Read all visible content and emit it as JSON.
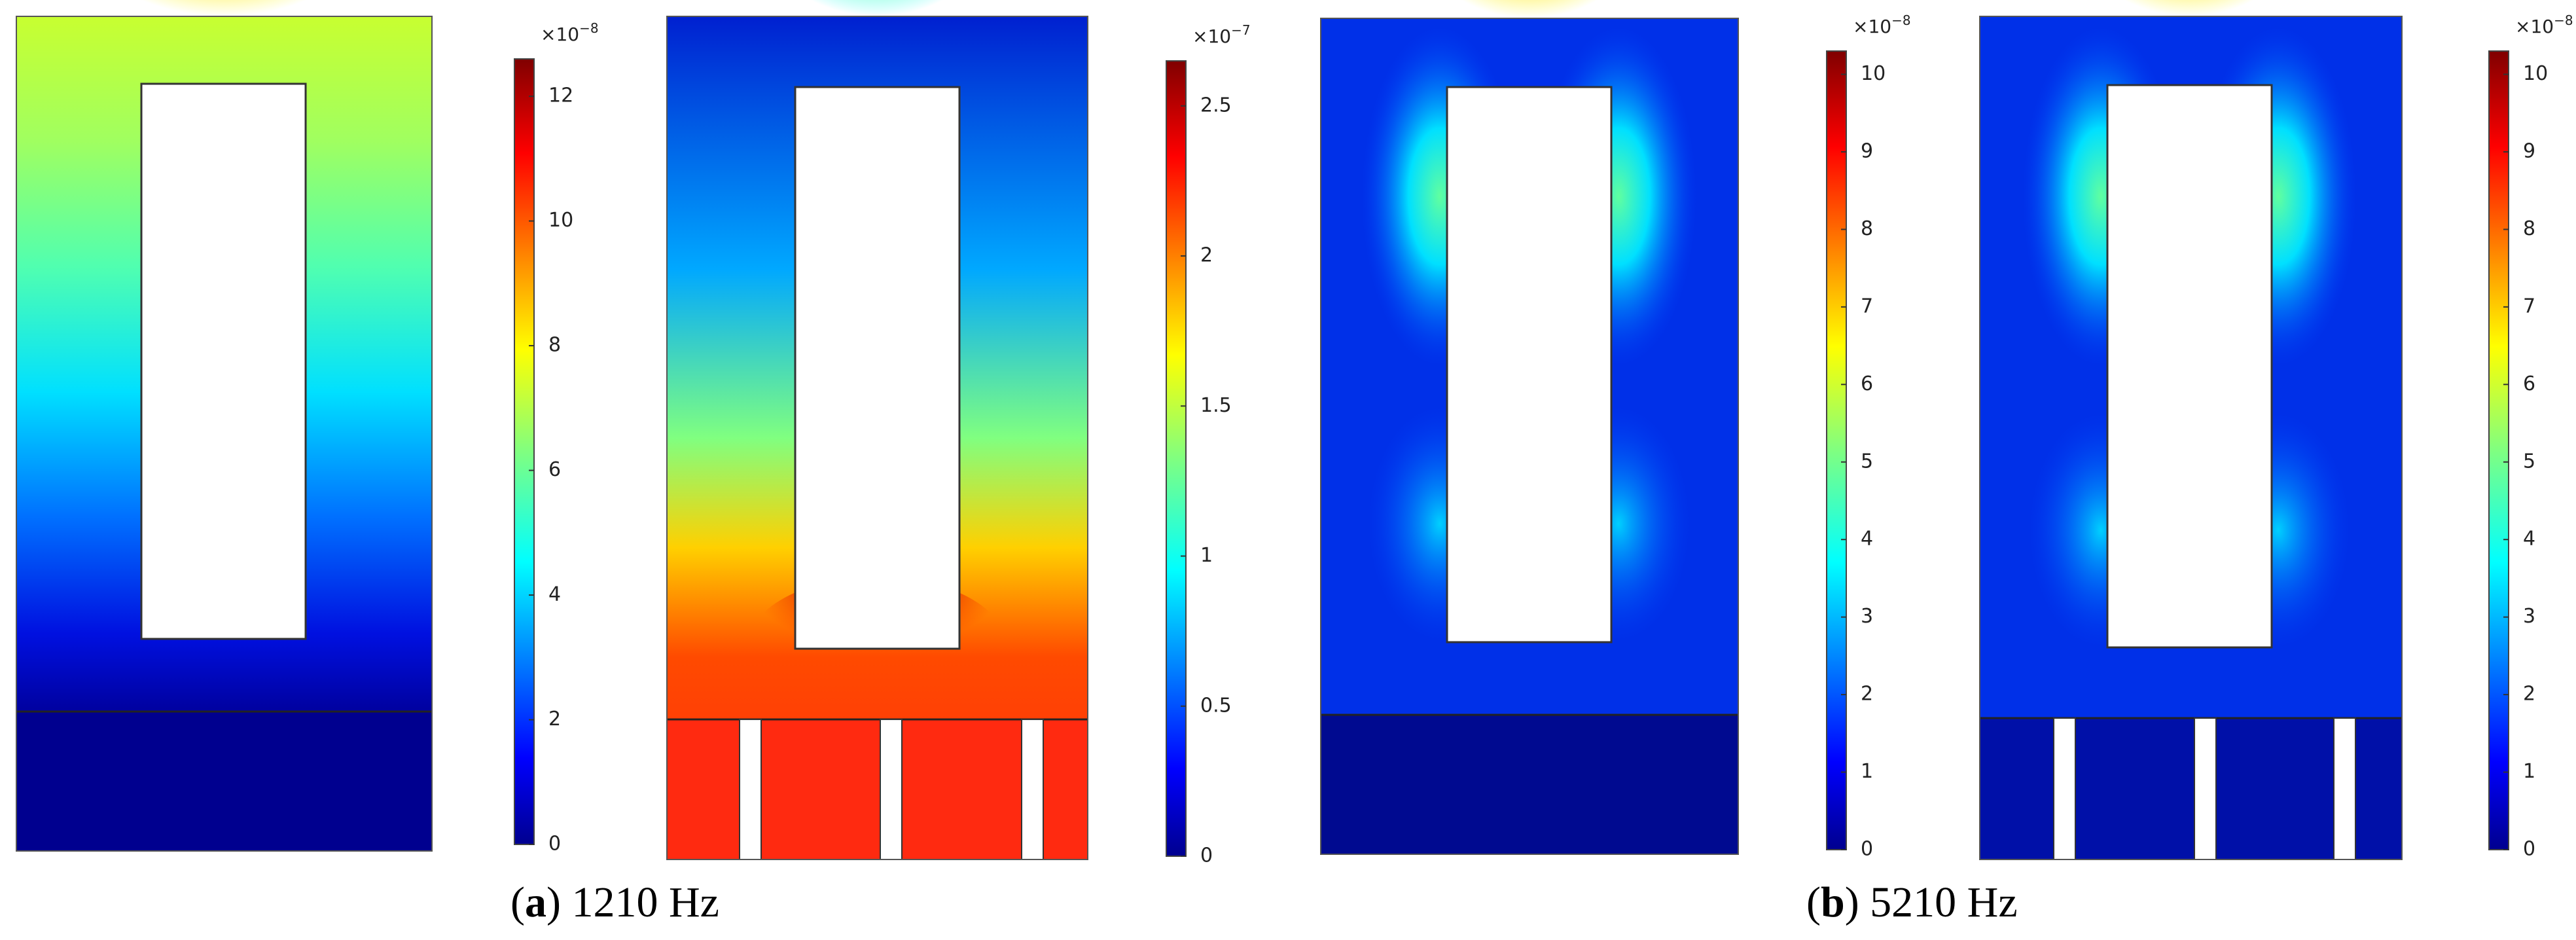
{
  "panels": [
    {
      "colorbar": {
        "multiplier": "×10",
        "exponent": "−8",
        "clim": [
          0,
          12.6
        ],
        "ticks": [
          0,
          2,
          4,
          6,
          8,
          10,
          12
        ]
      }
    },
    {
      "colorbar": {
        "multiplier": "×10",
        "exponent": "−7",
        "clim": [
          0,
          2.65
        ],
        "ticks": [
          0,
          0.5,
          1,
          1.5,
          2,
          2.5
        ]
      }
    },
    {
      "colorbar": {
        "multiplier": "×10",
        "exponent": "−8",
        "clim": [
          0,
          10.3
        ],
        "ticks": [
          0,
          1,
          2,
          3,
          4,
          5,
          6,
          7,
          8,
          9,
          10
        ]
      }
    },
    {
      "colorbar": {
        "multiplier": "×10",
        "exponent": "−8",
        "clim": [
          0,
          10.3
        ],
        "ticks": [
          0,
          1,
          2,
          3,
          4,
          5,
          6,
          7,
          8,
          9,
          10
        ]
      }
    }
  ],
  "captions": [
    {
      "open": "(",
      "letter": "a",
      "rest": ") 1210 Hz"
    },
    {
      "open": "(",
      "letter": "b",
      "rest": ") 5210 Hz"
    }
  ]
}
